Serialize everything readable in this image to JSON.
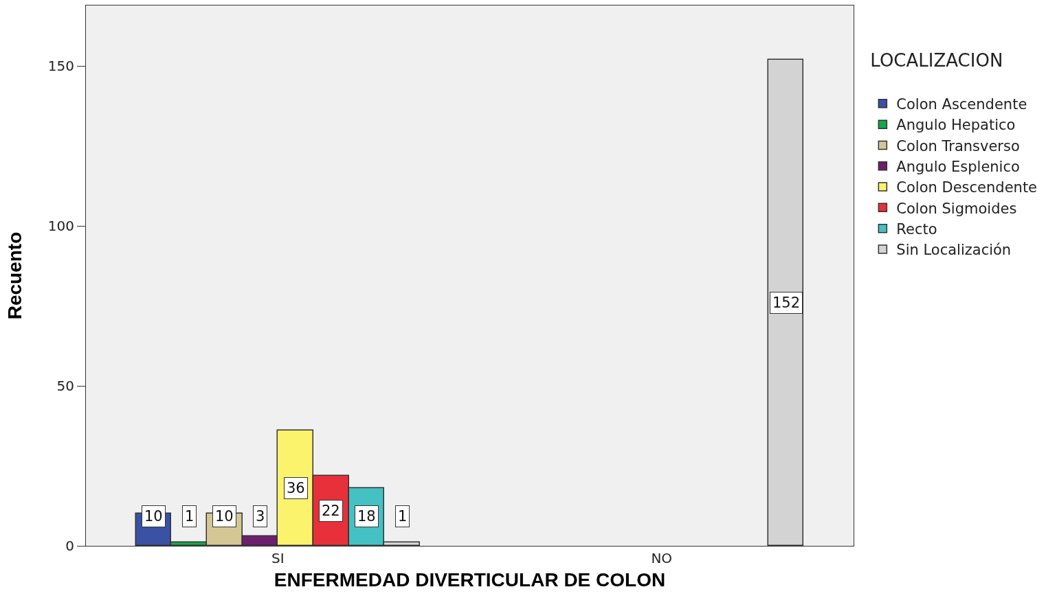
{
  "chart_data": {
    "type": "bar",
    "xlabel": "ENFERMEDAD DIVERTICULAR DE COLON",
    "ylabel": "Recuento",
    "legend_title": "LOCALIZACION",
    "categories": [
      "SI",
      "NO"
    ],
    "series": [
      {
        "name": "Colon Ascendente",
        "color": "#3a51a4",
        "values": [
          10,
          null
        ]
      },
      {
        "name": "Angulo Hepatico",
        "color": "#16a84a",
        "values": [
          1,
          null
        ]
      },
      {
        "name": "Colon Transverso",
        "color": "#d4c793",
        "values": [
          10,
          null
        ]
      },
      {
        "name": "Angulo Esplenico",
        "color": "#6e1e6e",
        "values": [
          3,
          null
        ]
      },
      {
        "name": "Colon Descendente",
        "color": "#fbf36c",
        "values": [
          36,
          null
        ]
      },
      {
        "name": "Colon Sigmoides",
        "color": "#e8303a",
        "values": [
          22,
          null
        ]
      },
      {
        "name": "Recto",
        "color": "#44c1c2",
        "values": [
          18,
          null
        ]
      },
      {
        "name": "Sin Localización",
        "color": "#d3d3d3",
        "values": [
          1,
          152
        ]
      }
    ],
    "ylim": [
      0,
      169
    ],
    "yticks": [
      0,
      50,
      100,
      150
    ],
    "grid": false,
    "legend": "right",
    "data_labels": true
  }
}
